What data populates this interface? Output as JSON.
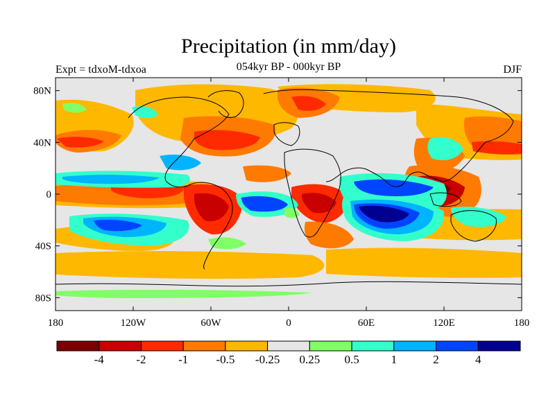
{
  "title": "Precipitation (in mm/day)",
  "left_string": "Expt = tdxoM-tdxoa",
  "center_string": "054kyr BP - 000kyr BP",
  "right_string": "DJF",
  "lat_ticks": [
    {
      "value": 80,
      "label": "80N"
    },
    {
      "value": 40,
      "label": "40N"
    },
    {
      "value": 0,
      "label": "0"
    },
    {
      "value": -40,
      "label": "40S"
    },
    {
      "value": -80,
      "label": "80S"
    }
  ],
  "lon_ticks": [
    {
      "value": -180,
      "label": "180"
    },
    {
      "value": -120,
      "label": "120W"
    },
    {
      "value": -60,
      "label": "60W"
    },
    {
      "value": 0,
      "label": "0"
    },
    {
      "value": 60,
      "label": "60E"
    },
    {
      "value": 120,
      "label": "120E"
    },
    {
      "value": 180,
      "label": "180"
    }
  ],
  "colorbar": {
    "colors": [
      "#7a0000",
      "#c80000",
      "#ff2a00",
      "#ff7a00",
      "#ffb800",
      "#e6e6e6",
      "#80ff66",
      "#33ffcc",
      "#00b4ff",
      "#0044ff",
      "#000090"
    ],
    "labels": [
      "-4",
      "-2",
      "-1",
      "-0.5",
      "-0.25",
      "0.25",
      "0.5",
      "1",
      "2",
      "4"
    ]
  },
  "domain": {
    "lon_min": -180,
    "lon_max": 180,
    "lat_min": -90,
    "lat_max": 90
  }
}
